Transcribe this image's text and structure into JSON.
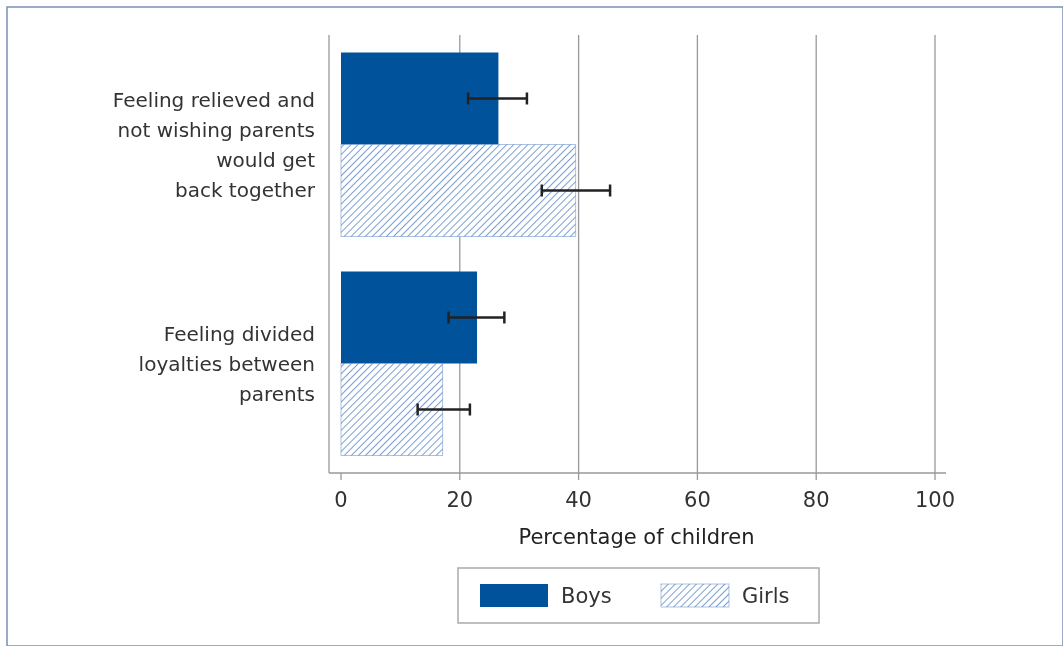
{
  "chart_data": {
    "type": "bar",
    "orientation": "horizontal",
    "xlabel": "Percentage of children",
    "categories": [
      "Feeling relieved and\nnot wishing parents\nwould get\nback together",
      "Feeling divided\nloyalties between\nparents"
    ],
    "series": [
      {
        "name": "Boys",
        "color": "#00529b",
        "values": [
          26.5,
          22.9
        ],
        "errors": [
          [
            21.4,
            31.3
          ],
          [
            18.1,
            27.5
          ]
        ]
      },
      {
        "name": "Girls",
        "color": "#5a86c5",
        "values": [
          39.5,
          17.1
        ],
        "errors": [
          [
            33.8,
            45.3
          ],
          [
            12.9,
            21.7
          ]
        ]
      }
    ],
    "xlim": [
      0,
      100
    ],
    "xticks": [
      0,
      20,
      40,
      60,
      80,
      100
    ],
    "grid": "x",
    "legend": "bottom"
  }
}
